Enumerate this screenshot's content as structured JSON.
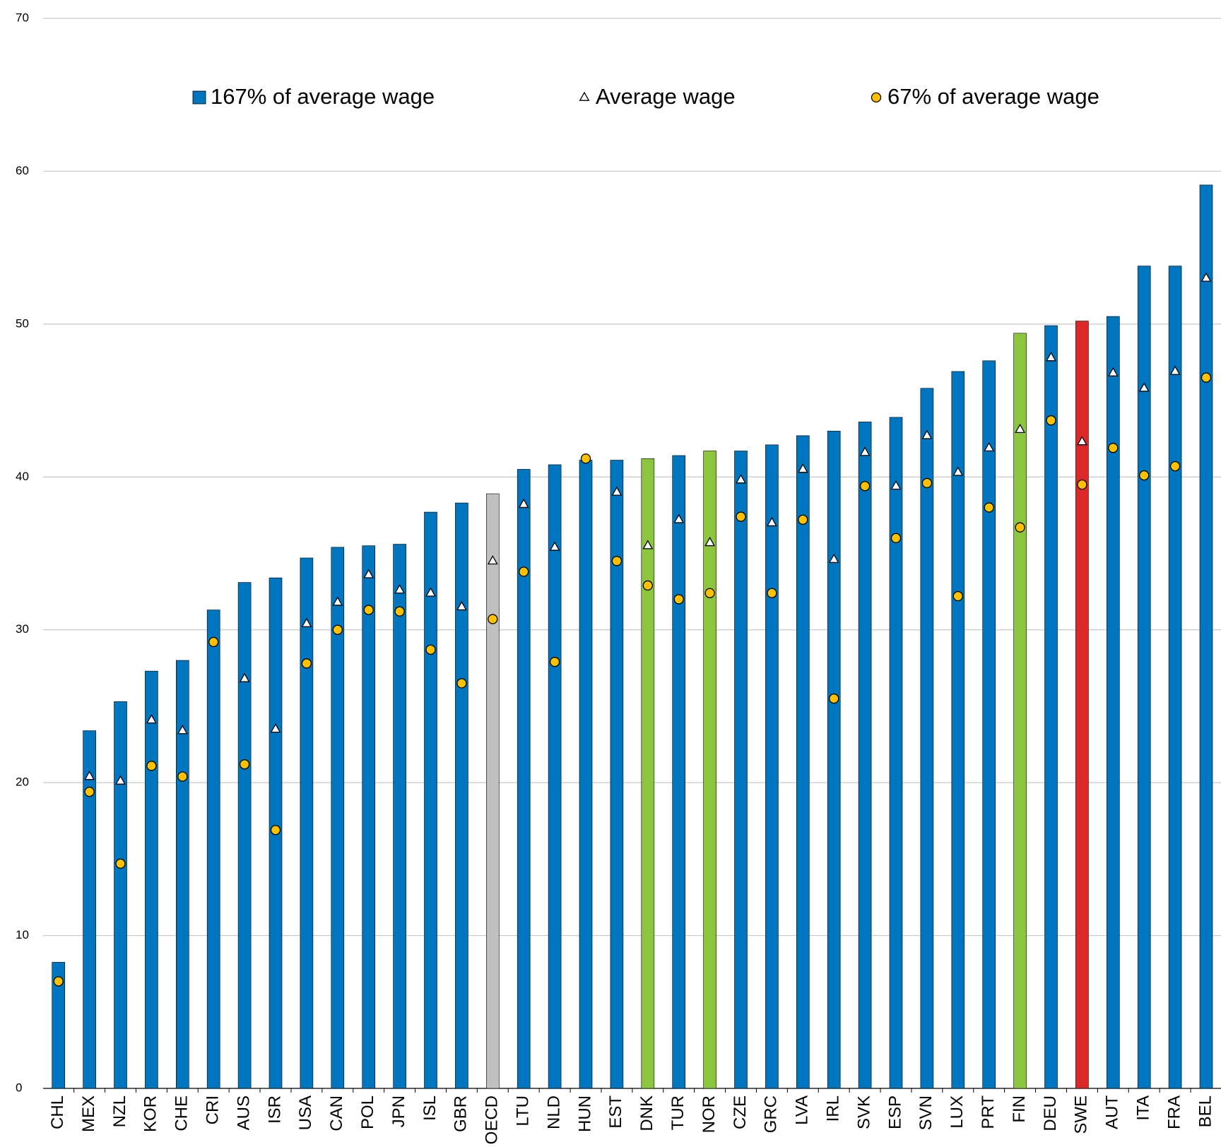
{
  "chart_data": {
    "type": "bar",
    "categories": [
      "CHL",
      "MEX",
      "NZL",
      "KOR",
      "CHE",
      "CRI",
      "AUS",
      "ISR",
      "USA",
      "CAN",
      "POL",
      "JPN",
      "ISL",
      "GBR",
      "OECD",
      "LTU",
      "NLD",
      "HUN",
      "EST",
      "DNK",
      "TUR",
      "NOR",
      "CZE",
      "GRC",
      "LVA",
      "IRL",
      "SVK",
      "ESP",
      "SVN",
      "LUX",
      "PRT",
      "FIN",
      "DEU",
      "SWE",
      "AUT",
      "ITA",
      "FRA",
      "BEL"
    ],
    "series": [
      {
        "name": "167% of average wage",
        "color": "#0076c0",
        "marker": "bar",
        "colors": [
          "#0076c0",
          "#0076c0",
          "#0076c0",
          "#0076c0",
          "#0076c0",
          "#0076c0",
          "#0076c0",
          "#0076c0",
          "#0076c0",
          "#0076c0",
          "#0076c0",
          "#0076c0",
          "#0076c0",
          "#0076c0",
          "#c0c0c0",
          "#0076c0",
          "#0076c0",
          "#0076c0",
          "#0076c0",
          "#8cc63e",
          "#0076c0",
          "#8cc63e",
          "#0076c0",
          "#0076c0",
          "#0076c0",
          "#0076c0",
          "#0076c0",
          "#0076c0",
          "#0076c0",
          "#0076c0",
          "#0076c0",
          "#8cc63e",
          "#0076c0",
          "#dc2828",
          "#0076c0",
          "#0076c0",
          "#0076c0",
          "#0076c0"
        ],
        "values": [
          8.25,
          23.4,
          25.3,
          27.3,
          28.0,
          31.3,
          33.1,
          33.4,
          34.7,
          35.4,
          35.5,
          35.6,
          37.7,
          38.3,
          38.9,
          40.5,
          40.8,
          41.1,
          41.1,
          41.2,
          41.4,
          41.7,
          41.7,
          42.1,
          42.7,
          43.0,
          43.6,
          43.9,
          45.8,
          46.9,
          47.6,
          49.4,
          49.9,
          50.2,
          50.5,
          53.8,
          53.8,
          59.1
        ]
      },
      {
        "name": "Average wage",
        "color": "#ffffff",
        "marker": "triangle",
        "values": [
          null,
          20.4,
          20.1,
          24.1,
          23.4,
          null,
          26.8,
          23.5,
          30.4,
          31.8,
          33.6,
          32.6,
          32.4,
          31.5,
          34.5,
          38.2,
          35.4,
          null,
          39.0,
          35.5,
          37.2,
          35.7,
          39.8,
          37.0,
          40.5,
          34.6,
          41.6,
          39.4,
          42.7,
          40.3,
          41.9,
          43.1,
          47.8,
          42.3,
          46.8,
          45.8,
          46.9,
          53.0
        ]
      },
      {
        "name": "67% of average wage",
        "color": "#ffc000",
        "marker": "circle",
        "values": [
          7.0,
          19.4,
          14.7,
          21.1,
          20.4,
          29.2,
          21.2,
          16.9,
          27.8,
          30.0,
          31.3,
          31.2,
          28.7,
          26.5,
          30.7,
          33.8,
          27.9,
          41.2,
          34.5,
          32.9,
          32.0,
          32.4,
          37.4,
          32.4,
          37.2,
          25.5,
          39.4,
          36.0,
          39.6,
          32.2,
          38.0,
          36.7,
          43.7,
          39.5,
          41.9,
          40.1,
          40.7,
          46.5
        ]
      }
    ],
    "ylim": [
      0,
      70
    ],
    "yticks": [
      0,
      10,
      20,
      30,
      40,
      50,
      60,
      70
    ],
    "grid": true
  }
}
